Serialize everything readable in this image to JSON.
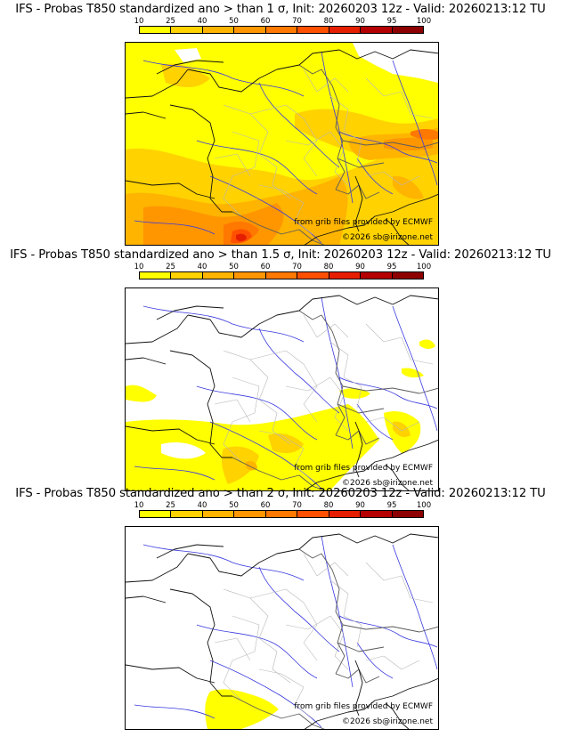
{
  "colorbar": {
    "ticks": [
      "10",
      "25",
      "40",
      "50",
      "60",
      "70",
      "80",
      "90",
      "95",
      "100"
    ],
    "colors": [
      "#ffff00",
      "#ffd200",
      "#ffb400",
      "#ff9600",
      "#ff7800",
      "#ff5000",
      "#e61e00",
      "#b40000",
      "#8c0000"
    ]
  },
  "panels": [
    {
      "title": "IFS - Probas T850  standardized ano > than 1 σ, Init: 20260203 12z - Valid: 20260213:12 TU",
      "source": "from grib files provided by ECMWF",
      "copyright": "©2026 sb@irizone.net"
    },
    {
      "title": "IFS - Probas T850  standardized ano > than 1.5 σ, Init: 20260203 12z - Valid: 20260213:12 TU",
      "source": "from grib files provided by ECMWF",
      "copyright": "©2026 sb@irizone.net"
    },
    {
      "title": "IFS - Probas T850  standardized ano > than 2 σ, Init: 20260203 12z - Valid: 20260213:12 TU",
      "source": "from grib files provided by ECMWF",
      "copyright": "©2026 sb@irizone.net"
    }
  ]
}
